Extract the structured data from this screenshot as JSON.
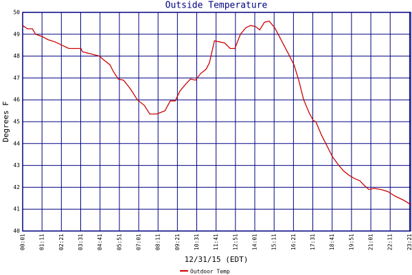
{
  "chart_data": {
    "type": "line",
    "title": "Outside Temperature",
    "x_label": "12/31/15 (EDT)",
    "y_label": "Degrees F",
    "xlim": [
      1,
      1405
    ],
    "ylim": [
      40,
      50
    ],
    "yticks": [
      40,
      41,
      42,
      43,
      44,
      45,
      46,
      47,
      48,
      49,
      50
    ],
    "xticks": [
      {
        "value": 1,
        "label": "00:01"
      },
      {
        "value": 71,
        "label": "01:11"
      },
      {
        "value": 141,
        "label": "02:21"
      },
      {
        "value": 211,
        "label": "03:31"
      },
      {
        "value": 281,
        "label": "04:41"
      },
      {
        "value": 351,
        "label": "05:51"
      },
      {
        "value": 421,
        "label": "07:01"
      },
      {
        "value": 491,
        "label": "08:11"
      },
      {
        "value": 561,
        "label": "09:21"
      },
      {
        "value": 631,
        "label": "10:31"
      },
      {
        "value": 701,
        "label": "11:41"
      },
      {
        "value": 771,
        "label": "12:51"
      },
      {
        "value": 841,
        "label": "14:01"
      },
      {
        "value": 911,
        "label": "15:11"
      },
      {
        "value": 981,
        "label": "16:21"
      },
      {
        "value": 1051,
        "label": "17:31"
      },
      {
        "value": 1121,
        "label": "18:41"
      },
      {
        "value": 1191,
        "label": "19:51"
      },
      {
        "value": 1261,
        "label": "21:01"
      },
      {
        "value": 1331,
        "label": "22:11"
      },
      {
        "value": 1401,
        "label": "23:21"
      }
    ],
    "grid": true,
    "series": [
      {
        "name": "Outdoor Temp",
        "color": "#cc0000",
        "x": [
          1,
          18,
          36,
          48,
          71,
          93,
          118,
          143,
          168,
          212,
          217,
          279,
          292,
          317,
          329,
          347,
          366,
          391,
          416,
          441,
          461,
          486,
          496,
          516,
          535,
          553,
          570,
          590,
          608,
          627,
          645,
          665,
          677,
          695,
          714,
          732,
          752,
          769,
          789,
          809,
          826,
          844,
          859,
          876,
          893,
          913,
          938,
          963,
          983,
          1000,
          1018,
          1038,
          1053,
          1062,
          1082,
          1102,
          1122,
          1142,
          1162,
          1182,
          1202,
          1221,
          1236,
          1254,
          1274,
          1298,
          1323,
          1348,
          1373,
          1388,
          1405
        ],
        "values": [
          49.4,
          49.25,
          49.25,
          49.0,
          48.9,
          48.75,
          48.65,
          48.5,
          48.35,
          48.35,
          48.2,
          48.0,
          47.85,
          47.6,
          47.3,
          46.95,
          46.9,
          46.5,
          46.0,
          45.75,
          45.35,
          45.35,
          45.4,
          45.5,
          45.95,
          45.95,
          46.4,
          46.7,
          46.95,
          46.9,
          47.2,
          47.4,
          47.7,
          48.7,
          48.65,
          48.6,
          48.35,
          48.35,
          49.0,
          49.3,
          49.4,
          49.35,
          49.2,
          49.55,
          49.6,
          49.3,
          48.7,
          48.1,
          47.6,
          46.9,
          46.0,
          45.4,
          45.05,
          45.0,
          44.4,
          43.9,
          43.4,
          43.05,
          42.75,
          42.55,
          42.4,
          42.3,
          42.1,
          41.9,
          41.95,
          41.9,
          41.8,
          41.6,
          41.45,
          41.35,
          41.2
        ]
      }
    ]
  }
}
